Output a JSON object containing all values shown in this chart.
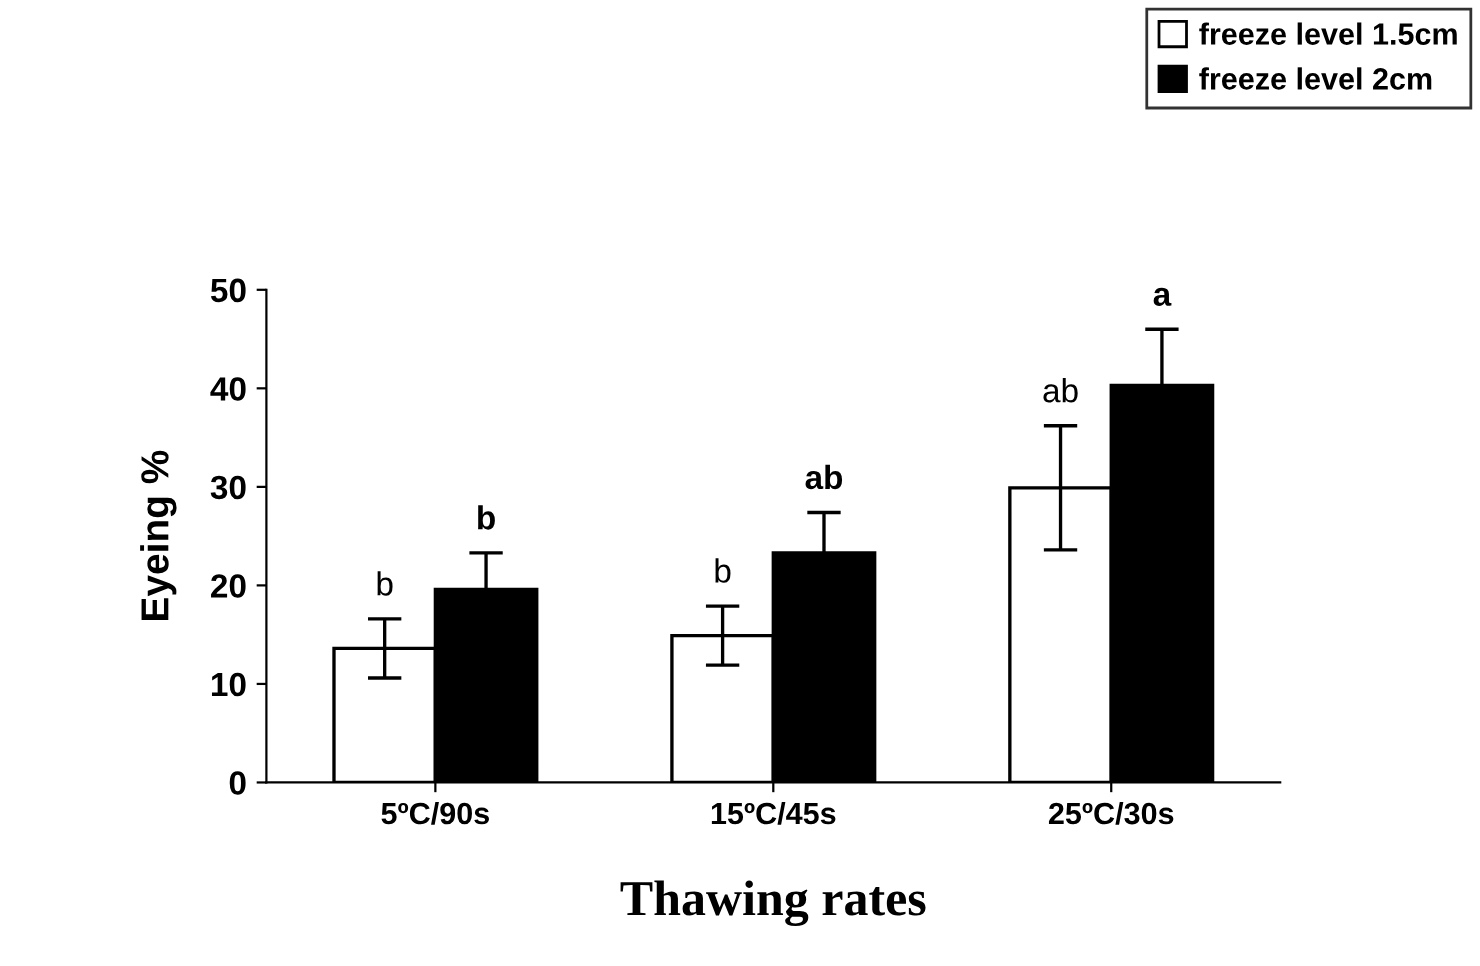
{
  "chart_data": {
    "type": "bar",
    "xlabel": "Thawing rates",
    "ylabel": "Eyeing %",
    "categories": [
      "5ºC/90s",
      "15ºC/45s",
      "25ºC/30s"
    ],
    "series": [
      {
        "name": "freeze level 1.5cm",
        "color": "#ffffff",
        "values": [
          13.6,
          14.9,
          29.9
        ],
        "errors": [
          3.0,
          3.0,
          6.3
        ]
      },
      {
        "name": "freeze level 2cm",
        "color": "#000000",
        "values": [
          19.6,
          23.3,
          40.3
        ],
        "errors": [
          3.7,
          4.1,
          5.7
        ]
      }
    ],
    "ylim": [
      0,
      50
    ],
    "yticks": [
      0,
      10,
      20,
      30,
      40,
      50
    ],
    "grid": false,
    "legend": "top right",
    "annotations": [
      "b",
      "b",
      "b",
      "ab",
      "ab",
      "a"
    ]
  }
}
